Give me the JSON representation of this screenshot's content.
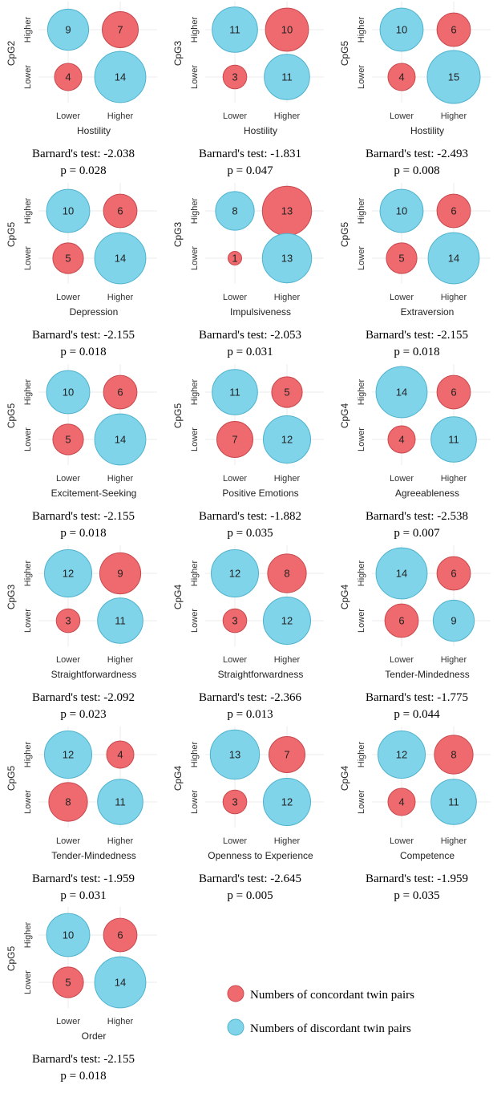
{
  "chart_data": [
    {
      "type": "bubble",
      "ylabel": "CpG2",
      "xlabel": "Hostility",
      "x_ticks": [
        "Lower",
        "Higher"
      ],
      "y_ticks": [
        "Lower",
        "Higher"
      ],
      "cells": {
        "higher_lower": 9,
        "higher_higher": 7,
        "lower_lower": 4,
        "lower_higher": 14
      },
      "test": "Barnard's test: -2.038",
      "p": "p = 0.028"
    },
    {
      "type": "bubble",
      "ylabel": "CpG3",
      "xlabel": "Hostility",
      "x_ticks": [
        "Lower",
        "Higher"
      ],
      "y_ticks": [
        "Lower",
        "Higher"
      ],
      "cells": {
        "higher_lower": 11,
        "higher_higher": 10,
        "lower_lower": 3,
        "lower_higher": 11
      },
      "test": "Barnard's test: -1.831",
      "p": "p = 0.047"
    },
    {
      "type": "bubble",
      "ylabel": "CpG5",
      "xlabel": "Hostility",
      "x_ticks": [
        "Lower",
        "Higher"
      ],
      "y_ticks": [
        "Lower",
        "Higher"
      ],
      "cells": {
        "higher_lower": 10,
        "higher_higher": 6,
        "lower_lower": 4,
        "lower_higher": 15
      },
      "test": "Barnard's test: -2.493",
      "p": "p = 0.008"
    },
    {
      "type": "bubble",
      "ylabel": "CpG5",
      "xlabel": "Depression",
      "x_ticks": [
        "Lower",
        "Higher"
      ],
      "y_ticks": [
        "Lower",
        "Higher"
      ],
      "cells": {
        "higher_lower": 10,
        "higher_higher": 6,
        "lower_lower": 5,
        "lower_higher": 14
      },
      "test": "Barnard's test: -2.155",
      "p": "p = 0.018"
    },
    {
      "type": "bubble",
      "ylabel": "CpG3",
      "xlabel": "Impulsiveness",
      "x_ticks": [
        "Lower",
        "Higher"
      ],
      "y_ticks": [
        "Lower",
        "Higher"
      ],
      "cells": {
        "higher_lower": 8,
        "higher_higher": 13,
        "lower_lower": 1,
        "lower_higher": 13
      },
      "test": "Barnard's test: -2.053",
      "p": "p = 0.031"
    },
    {
      "type": "bubble",
      "ylabel": "CpG5",
      "xlabel": "Extraversion",
      "x_ticks": [
        "Lower",
        "Higher"
      ],
      "y_ticks": [
        "Lower",
        "Higher"
      ],
      "cells": {
        "higher_lower": 10,
        "higher_higher": 6,
        "lower_lower": 5,
        "lower_higher": 14
      },
      "test": "Barnard's test: -2.155",
      "p": "p = 0.018"
    },
    {
      "type": "bubble",
      "ylabel": "CpG5",
      "xlabel": "Excitement-Seeking",
      "x_ticks": [
        "Lower",
        "Higher"
      ],
      "y_ticks": [
        "Lower",
        "Higher"
      ],
      "cells": {
        "higher_lower": 10,
        "higher_higher": 6,
        "lower_lower": 5,
        "lower_higher": 14
      },
      "test": "Barnard's test: -2.155",
      "p": "p = 0.018"
    },
    {
      "type": "bubble",
      "ylabel": "CpG5",
      "xlabel": "Positive Emotions",
      "x_ticks": [
        "Lower",
        "Higher"
      ],
      "y_ticks": [
        "Lower",
        "Higher"
      ],
      "cells": {
        "higher_lower": 11,
        "higher_higher": 5,
        "lower_lower": 7,
        "lower_higher": 12
      },
      "test": "Barnard's test: -1.882",
      "p": "p = 0.035"
    },
    {
      "type": "bubble",
      "ylabel": "CpG4",
      "xlabel": "Agreeableness",
      "x_ticks": [
        "Lower",
        "Higher"
      ],
      "y_ticks": [
        "Lower",
        "Higher"
      ],
      "cells": {
        "higher_lower": 14,
        "higher_higher": 6,
        "lower_lower": 4,
        "lower_higher": 11
      },
      "test": "Barnard's test: -2.538",
      "p": "p = 0.007"
    },
    {
      "type": "bubble",
      "ylabel": "CpG3",
      "xlabel": "Straightforwardness",
      "x_ticks": [
        "Lower",
        "Higher"
      ],
      "y_ticks": [
        "Lower",
        "Higher"
      ],
      "cells": {
        "higher_lower": 12,
        "higher_higher": 9,
        "lower_lower": 3,
        "lower_higher": 11
      },
      "test": "Barnard's test: -2.092",
      "p": "p = 0.023"
    },
    {
      "type": "bubble",
      "ylabel": "CpG4",
      "xlabel": "Straightforwardness",
      "x_ticks": [
        "Lower",
        "Higher"
      ],
      "y_ticks": [
        "Lower",
        "Higher"
      ],
      "cells": {
        "higher_lower": 12,
        "higher_higher": 8,
        "lower_lower": 3,
        "lower_higher": 12
      },
      "test": "Barnard's test: -2.366",
      "p": "p = 0.013"
    },
    {
      "type": "bubble",
      "ylabel": "CpG4",
      "xlabel": "Tender-Mindedness",
      "x_ticks": [
        "Lower",
        "Higher"
      ],
      "y_ticks": [
        "Lower",
        "Higher"
      ],
      "cells": {
        "higher_lower": 14,
        "higher_higher": 6,
        "lower_lower": 6,
        "lower_higher": 9
      },
      "test": "Barnard's test: -1.775",
      "p": "p = 0.044"
    },
    {
      "type": "bubble",
      "ylabel": "CpG5",
      "xlabel": "Tender-Mindedness",
      "x_ticks": [
        "Lower",
        "Higher"
      ],
      "y_ticks": [
        "Lower",
        "Higher"
      ],
      "cells": {
        "higher_lower": 12,
        "higher_higher": 4,
        "lower_lower": 8,
        "lower_higher": 11
      },
      "test": "Barnard's test: -1.959",
      "p": "p = 0.031"
    },
    {
      "type": "bubble",
      "ylabel": "CpG4",
      "xlabel": "Openness to Experience",
      "x_ticks": [
        "Lower",
        "Higher"
      ],
      "y_ticks": [
        "Lower",
        "Higher"
      ],
      "cells": {
        "higher_lower": 13,
        "higher_higher": 7,
        "lower_lower": 3,
        "lower_higher": 12
      },
      "test": "Barnard's test: -2.645",
      "p": "p = 0.005"
    },
    {
      "type": "bubble",
      "ylabel": "CpG4",
      "xlabel": "Competence",
      "x_ticks": [
        "Lower",
        "Higher"
      ],
      "y_ticks": [
        "Lower",
        "Higher"
      ],
      "cells": {
        "higher_lower": 12,
        "higher_higher": 8,
        "lower_lower": 4,
        "lower_higher": 11
      },
      "test": "Barnard's test: -1.959",
      "p": "p = 0.035"
    },
    {
      "type": "bubble",
      "ylabel": "CpG5",
      "xlabel": "Order",
      "x_ticks": [
        "Lower",
        "Higher"
      ],
      "y_ticks": [
        "Lower",
        "Higher"
      ],
      "cells": {
        "higher_lower": 10,
        "higher_higher": 6,
        "lower_lower": 5,
        "lower_higher": 14
      },
      "test": "Barnard's test: -2.155",
      "p": "p = 0.018"
    }
  ],
  "legend": {
    "concordant": {
      "label": "Numbers of concordant twin pairs",
      "color": "#ee6a6e"
    },
    "discordant": {
      "label": "Numbers of discordant twin pairs",
      "color": "#7fd4ea"
    }
  }
}
